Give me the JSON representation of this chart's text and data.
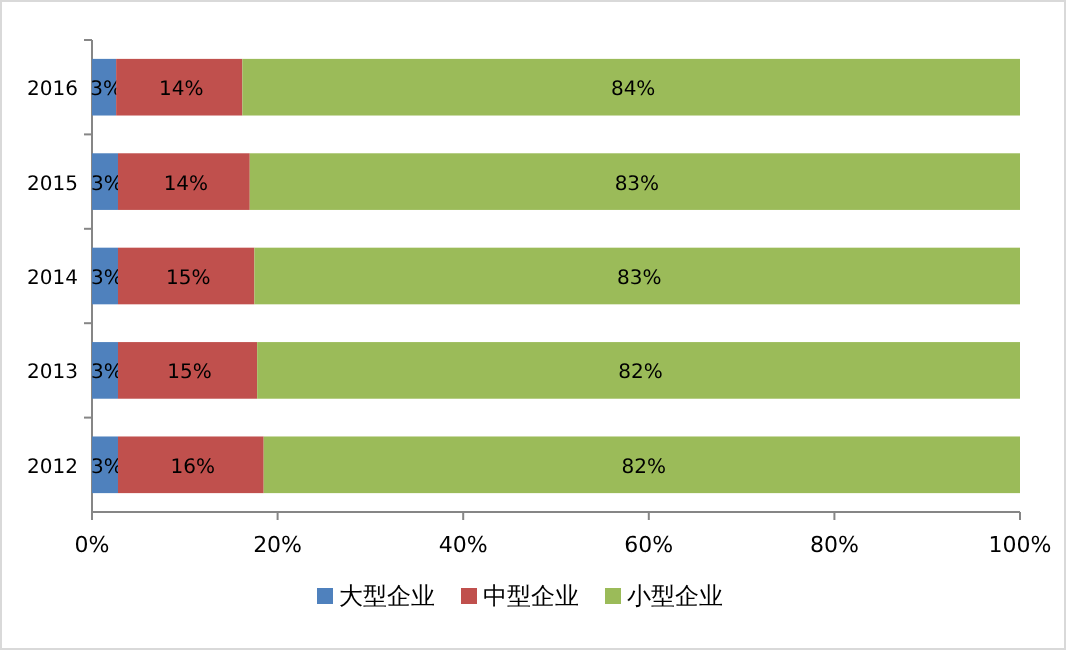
{
  "chart_data": {
    "type": "bar",
    "orientation": "horizontal",
    "stacked": true,
    "categories": [
      "2016",
      "2015",
      "2014",
      "2013",
      "2012"
    ],
    "series": [
      {
        "name": "大型企业",
        "color": "#4f81bd",
        "values": [
          2.6,
          2.8,
          2.8,
          2.8,
          2.8
        ],
        "value_labels": [
          "3%",
          "3%",
          "3%",
          "3%",
          "3%"
        ]
      },
      {
        "name": "中型企业",
        "color": "#c0504d",
        "values": [
          13.6,
          14.2,
          14.7,
          15.0,
          15.7
        ],
        "value_labels": [
          "14%",
          "14%",
          "15%",
          "15%",
          "16%"
        ]
      },
      {
        "name": "小型企业",
        "color": "#9bbb59",
        "values": [
          83.8,
          83.0,
          82.5,
          82.2,
          81.5
        ],
        "value_labels": [
          "84%",
          "83%",
          "83%",
          "82%",
          "82%"
        ]
      }
    ],
    "xlim": [
      0,
      100
    ],
    "xticks": [
      {
        "value": 0,
        "label": "0%"
      },
      {
        "value": 20,
        "label": "20%"
      },
      {
        "value": 40,
        "label": "40%"
      },
      {
        "value": 60,
        "label": "60%"
      },
      {
        "value": 80,
        "label": "80%"
      },
      {
        "value": 100,
        "label": "100%"
      }
    ],
    "legend": "bottom",
    "grid": false
  }
}
